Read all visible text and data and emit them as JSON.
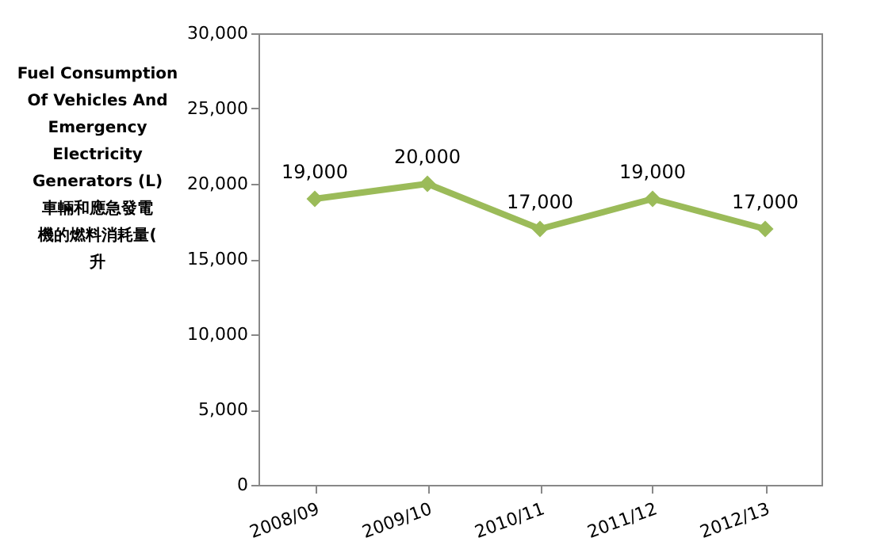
{
  "chart_data": {
    "type": "line",
    "ylabel": "Fuel Consumption Of Vehicles And Emergency Electricity Generators (L) 車輛和應急發電機的燃料消耗量(升",
    "categories": [
      "2008/09",
      "2009/10",
      "2010/11",
      "2011/12",
      "2012/13"
    ],
    "series": [
      {
        "color": "#9bbb59",
        "values": [
          19000,
          20000,
          17000,
          19000,
          17000
        ]
      }
    ],
    "value_labels": [
      "19,000",
      "20,000",
      "17,000",
      "19,000",
      "17,000"
    ],
    "ylim": [
      0,
      30000
    ],
    "yticks": [
      0,
      {
        "value": 5000,
        "label": "5,000"
      },
      {
        "value": 10000,
        "label": "10,000"
      },
      {
        "value": 15000,
        "label": "15,000"
      },
      {
        "value": 20000,
        "label": "20,000"
      },
      {
        "value": 25000,
        "label": "25,000"
      },
      {
        "value": 30000,
        "label": "30,000"
      }
    ],
    "grid": false,
    "legend": false,
    "marker": "diamond",
    "line_style": "solid"
  }
}
